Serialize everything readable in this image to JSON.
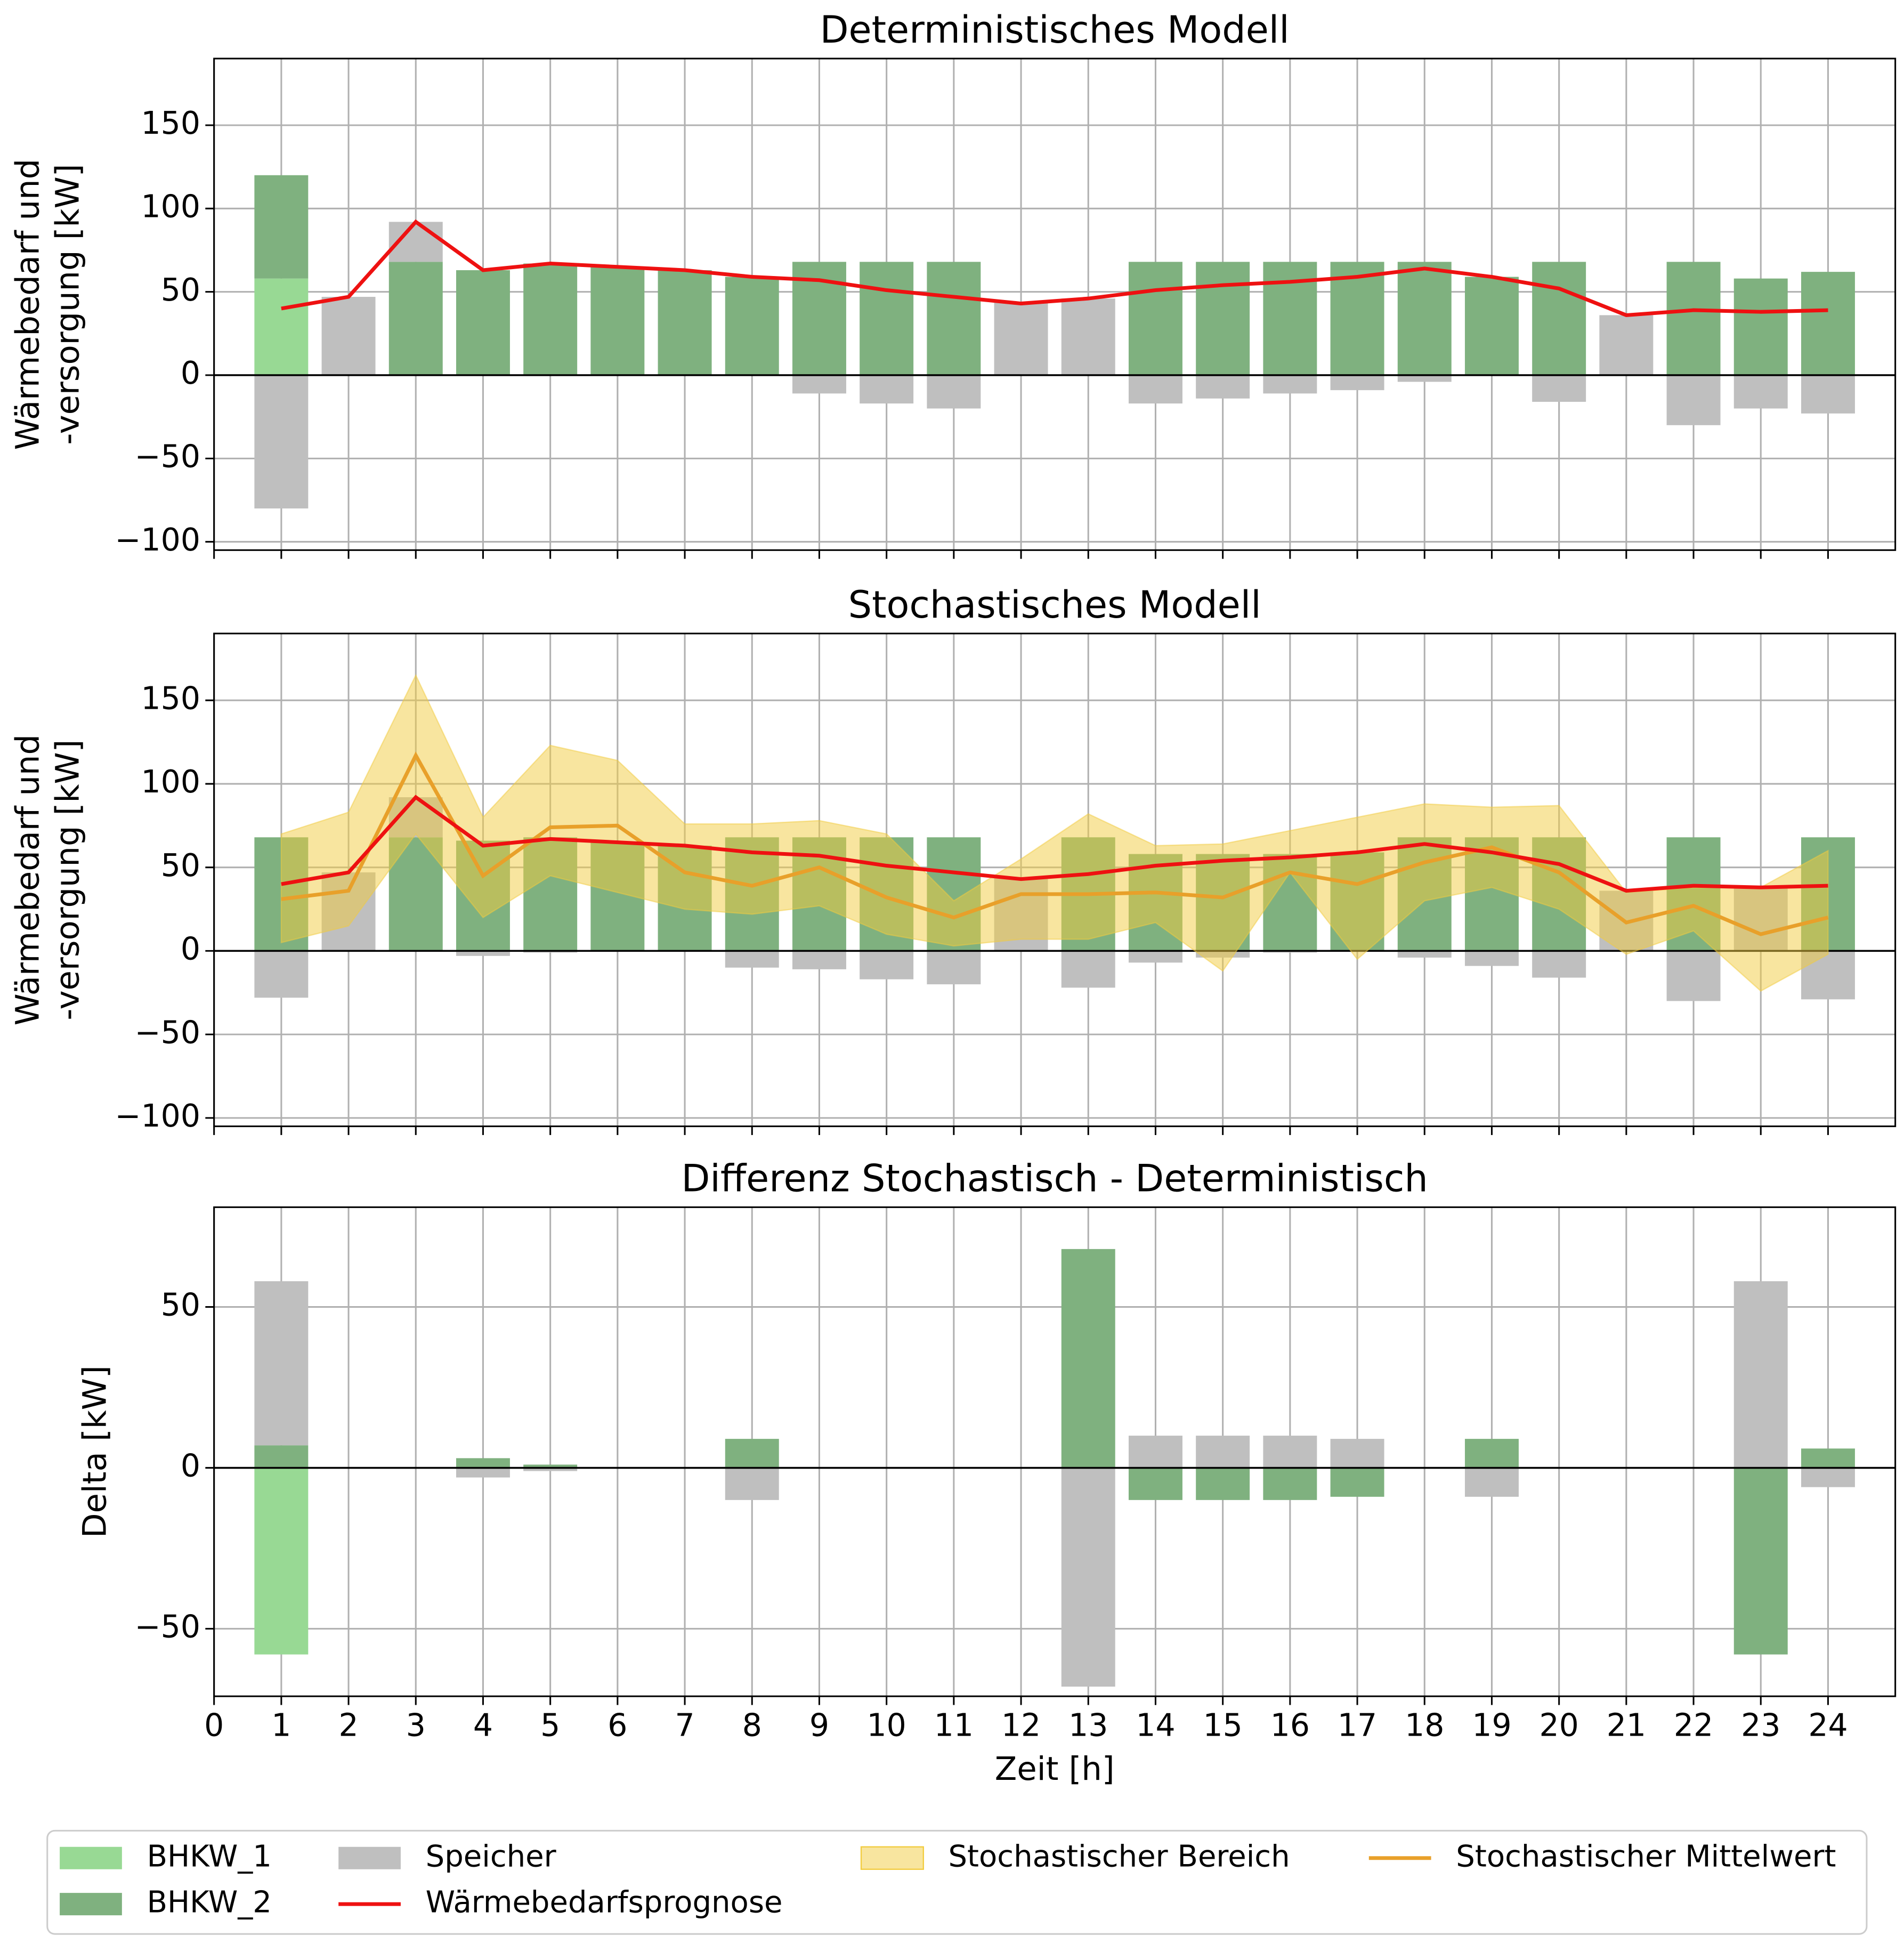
{
  "chart_data": [
    {
      "type": "bar",
      "title": "Deterministisches Modell",
      "ylabel": [
        "Wärmebedarf und",
        "-versorgung [kW]"
      ],
      "x": [
        1,
        2,
        3,
        4,
        5,
        6,
        7,
        8,
        9,
        10,
        11,
        12,
        13,
        14,
        15,
        16,
        17,
        18,
        19,
        20,
        21,
        22,
        23,
        24
      ],
      "xlim": [
        0,
        25
      ],
      "xticks": [
        0,
        1,
        2,
        3,
        4,
        5,
        6,
        7,
        8,
        9,
        10,
        11,
        12,
        13,
        14,
        15,
        16,
        17,
        18,
        19,
        20,
        21,
        22,
        23,
        24
      ],
      "ylim": [
        -105,
        190
      ],
      "yticks": [
        {
          "value": -100,
          "label": "−100"
        },
        {
          "value": -50,
          "label": "−50"
        },
        0,
        50,
        100,
        150
      ],
      "grid": true,
      "series": [
        {
          "name": "BHKW_1",
          "type": "bar",
          "color": "#98d994",
          "values": [
            58,
            0,
            0,
            0,
            0,
            0,
            0,
            0,
            0,
            0,
            0,
            0,
            0,
            0,
            0,
            0,
            0,
            0,
            0,
            0,
            0,
            0,
            0,
            0
          ]
        },
        {
          "name": "BHKW_2",
          "type": "bar",
          "color": "#7fb17f",
          "values": [
            62,
            0,
            68,
            63,
            67,
            65,
            63,
            59,
            68,
            68,
            68,
            0,
            0,
            68,
            68,
            68,
            68,
            68,
            59,
            68,
            0,
            68,
            58,
            62
          ]
        },
        {
          "name": "Speicher",
          "type": "bar",
          "color": "#bfbfbf",
          "values": [
            -80,
            47,
            24,
            0,
            0,
            0,
            0,
            0,
            -11,
            -17,
            -20,
            44,
            46,
            -17,
            -14,
            -11,
            -9,
            -4,
            0,
            -16,
            36,
            -30,
            -20,
            -23
          ]
        },
        {
          "name": "Wärmebedarfsprognose",
          "type": "line",
          "color": "#ee1111",
          "values": [
            40,
            47,
            92,
            63,
            67,
            65,
            63,
            59,
            57,
            51,
            47,
            43,
            46,
            51,
            54,
            56,
            59,
            64,
            59,
            52,
            36,
            39,
            38,
            39
          ]
        }
      ]
    },
    {
      "type": "bar",
      "title": "Stochastisches Modell",
      "ylabel": [
        "Wärmebedarf und",
        "-versorgung [kW]"
      ],
      "x": [
        1,
        2,
        3,
        4,
        5,
        6,
        7,
        8,
        9,
        10,
        11,
        12,
        13,
        14,
        15,
        16,
        17,
        18,
        19,
        20,
        21,
        22,
        23,
        24
      ],
      "xlim": [
        0,
        25
      ],
      "xticks": [
        0,
        1,
        2,
        3,
        4,
        5,
        6,
        7,
        8,
        9,
        10,
        11,
        12,
        13,
        14,
        15,
        16,
        17,
        18,
        19,
        20,
        21,
        22,
        23,
        24
      ],
      "ylim": [
        -105,
        190
      ],
      "yticks": [
        {
          "value": -100,
          "label": "−100"
        },
        {
          "value": -50,
          "label": "−50"
        },
        0,
        50,
        100,
        150
      ],
      "grid": true,
      "series": [
        {
          "name": "BHKW_2",
          "type": "bar",
          "color": "#7fb17f",
          "values": [
            68,
            0,
            68,
            66,
            68,
            65,
            63,
            68,
            68,
            68,
            68,
            0,
            68,
            58,
            58,
            58,
            59,
            68,
            68,
            68,
            0,
            68,
            0,
            68
          ]
        },
        {
          "name": "Speicher",
          "type": "bar",
          "color": "#bfbfbf",
          "values": [
            -28,
            47,
            24,
            -3,
            -1,
            0,
            0,
            -10,
            -11,
            -17,
            -20,
            44,
            -22,
            -7,
            -4,
            -1,
            0,
            -4,
            -9,
            -16,
            36,
            -30,
            38,
            -29
          ]
        },
        {
          "name": "Stochastischer Bereich",
          "type": "band",
          "color": "#f2cc3f",
          "lower": [
            5,
            15,
            70,
            20,
            45,
            35,
            25,
            22,
            27,
            10,
            3,
            7,
            7,
            17,
            -12,
            47,
            -5,
            30,
            38,
            25,
            -2,
            12,
            -24,
            -2
          ],
          "upper": [
            70,
            83,
            165,
            80,
            123,
            114,
            76,
            76,
            78,
            70,
            30,
            55,
            82,
            63,
            64,
            72,
            80,
            88,
            86,
            87,
            35,
            38,
            38,
            60
          ]
        },
        {
          "name": "Stochastischer Mittelwert",
          "type": "line",
          "color": "#e8a02a",
          "values": [
            31,
            36,
            117,
            45,
            74,
            75,
            47,
            39,
            50,
            32,
            20,
            34,
            34,
            35,
            32,
            47,
            40,
            53,
            62,
            47,
            17,
            27,
            10,
            20
          ]
        },
        {
          "name": "Wärmebedarfsprognose",
          "type": "line",
          "color": "#ee1111",
          "values": [
            40,
            47,
            92,
            63,
            67,
            65,
            63,
            59,
            57,
            51,
            47,
            43,
            46,
            51,
            54,
            56,
            59,
            64,
            59,
            52,
            36,
            39,
            38,
            39
          ]
        }
      ]
    },
    {
      "type": "bar",
      "title": "Differenz Stochastisch - Deterministisch",
      "ylabel": [
        "Delta [kW]"
      ],
      "xlabel": "Zeit [h]",
      "x": [
        1,
        2,
        3,
        4,
        5,
        6,
        7,
        8,
        9,
        10,
        11,
        12,
        13,
        14,
        15,
        16,
        17,
        18,
        19,
        20,
        21,
        22,
        23,
        24
      ],
      "xlim": [
        0,
        25
      ],
      "xticks": [
        0,
        1,
        2,
        3,
        4,
        5,
        6,
        7,
        8,
        9,
        10,
        11,
        12,
        13,
        14,
        15,
        16,
        17,
        18,
        19,
        20,
        21,
        22,
        23,
        24
      ],
      "ylim": [
        -71,
        81
      ],
      "yticks": [
        {
          "value": -50,
          "label": "−50"
        },
        0,
        50
      ],
      "grid": true,
      "series": [
        {
          "name": "BHKW_1",
          "type": "bar",
          "color": "#98d994",
          "values": [
            -58,
            0,
            0,
            0,
            0,
            0,
            0,
            0,
            0,
            0,
            0,
            0,
            0,
            0,
            0,
            0,
            0,
            0,
            0,
            0,
            0,
            0,
            0,
            0
          ]
        },
        {
          "name": "BHKW_2",
          "type": "bar",
          "color": "#7fb17f",
          "values": [
            7,
            0,
            0,
            3,
            1,
            0,
            0,
            9,
            0,
            0,
            0,
            0,
            68,
            -10,
            -10,
            -10,
            -9,
            0,
            9,
            0,
            0,
            0,
            -58,
            6
          ]
        },
        {
          "name": "Speicher",
          "type": "bar",
          "color": "#bfbfbf",
          "values": [
            51,
            0,
            0,
            -3,
            -1,
            0,
            0,
            -10,
            0,
            0,
            0,
            0,
            -68,
            10,
            10,
            10,
            9,
            0,
            -9,
            0,
            0,
            0,
            58,
            -6
          ]
        }
      ]
    }
  ]
}
